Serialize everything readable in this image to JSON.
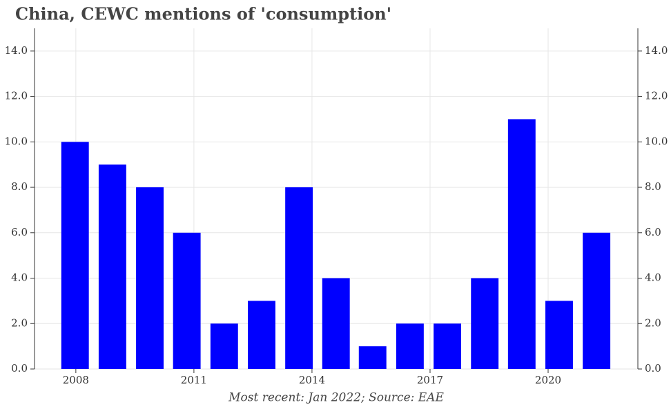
{
  "chart_data": {
    "type": "bar",
    "title": "China, CEWC mentions of 'consumption'",
    "footnote": "Most recent: Jan 2022; Source: EAE",
    "x": [
      2007.98,
      2008.93,
      2009.88,
      2010.82,
      2011.77,
      2012.72,
      2013.67,
      2014.61,
      2015.54,
      2016.49,
      2017.44,
      2018.39,
      2019.33,
      2020.28,
      2021.23
    ],
    "values": [
      10,
      9,
      8,
      6,
      2,
      3,
      8,
      4,
      1,
      2,
      2,
      4,
      11,
      3,
      6
    ],
    "color": "#0000ff",
    "xlim": [
      2006.95,
      2022.28
    ],
    "xticks": [
      2008,
      2011,
      2014,
      2017,
      2020
    ],
    "ylim": [
      0,
      15
    ],
    "yticks": [
      {
        "value": 0,
        "label": "0.0"
      },
      {
        "value": 2,
        "label": "2.0"
      },
      {
        "value": 4,
        "label": "4.0"
      },
      {
        "value": 6,
        "label": "6.0"
      },
      {
        "value": 8,
        "label": "8.0"
      },
      {
        "value": 10,
        "label": "10.0"
      },
      {
        "value": 12,
        "label": "12.0"
      },
      {
        "value": 14,
        "label": "14.0"
      }
    ],
    "grid": true
  }
}
